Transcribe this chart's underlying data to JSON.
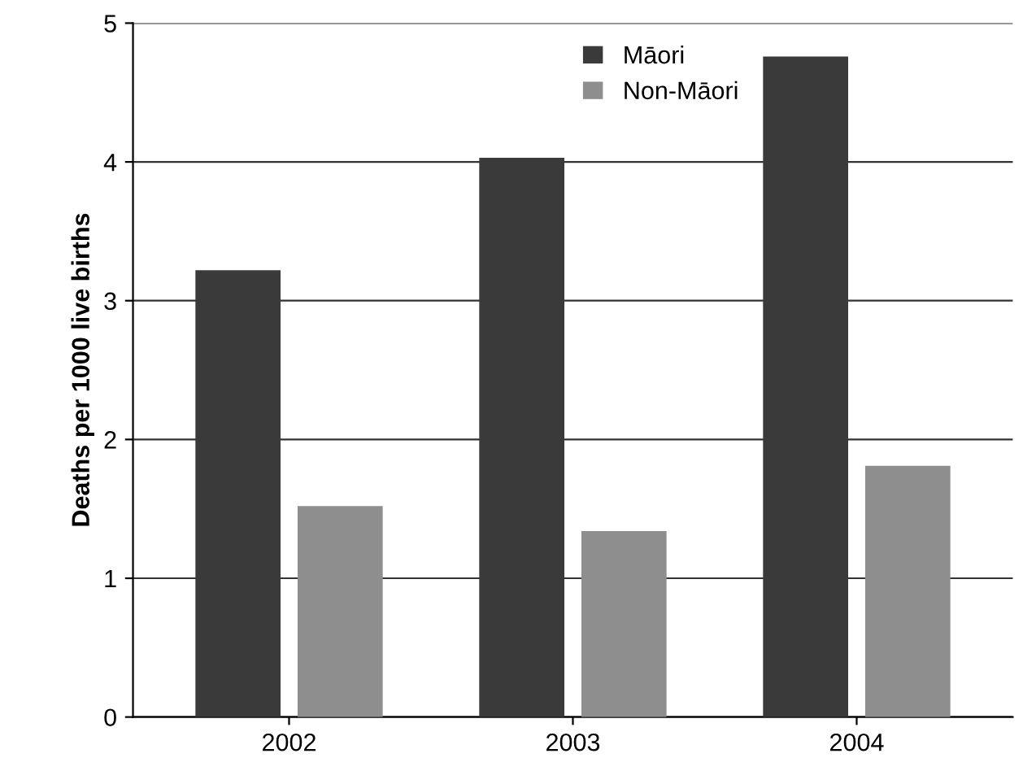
{
  "chart_data": {
    "type": "bar",
    "ylabel": "Deaths per 1000 live births",
    "categories": [
      "2002",
      "2003",
      "2004"
    ],
    "series": [
      {
        "name": "Māori",
        "color": "#3a3a3a",
        "values": [
          3.22,
          4.03,
          4.76
        ]
      },
      {
        "name": "Non-Māori",
        "color": "#8e8e8e",
        "values": [
          1.52,
          1.34,
          1.81
        ]
      }
    ],
    "ylim": [
      0,
      5
    ],
    "yticks": [
      0,
      1,
      2,
      3,
      4,
      5
    ],
    "grid": "y",
    "legend": "top"
  }
}
